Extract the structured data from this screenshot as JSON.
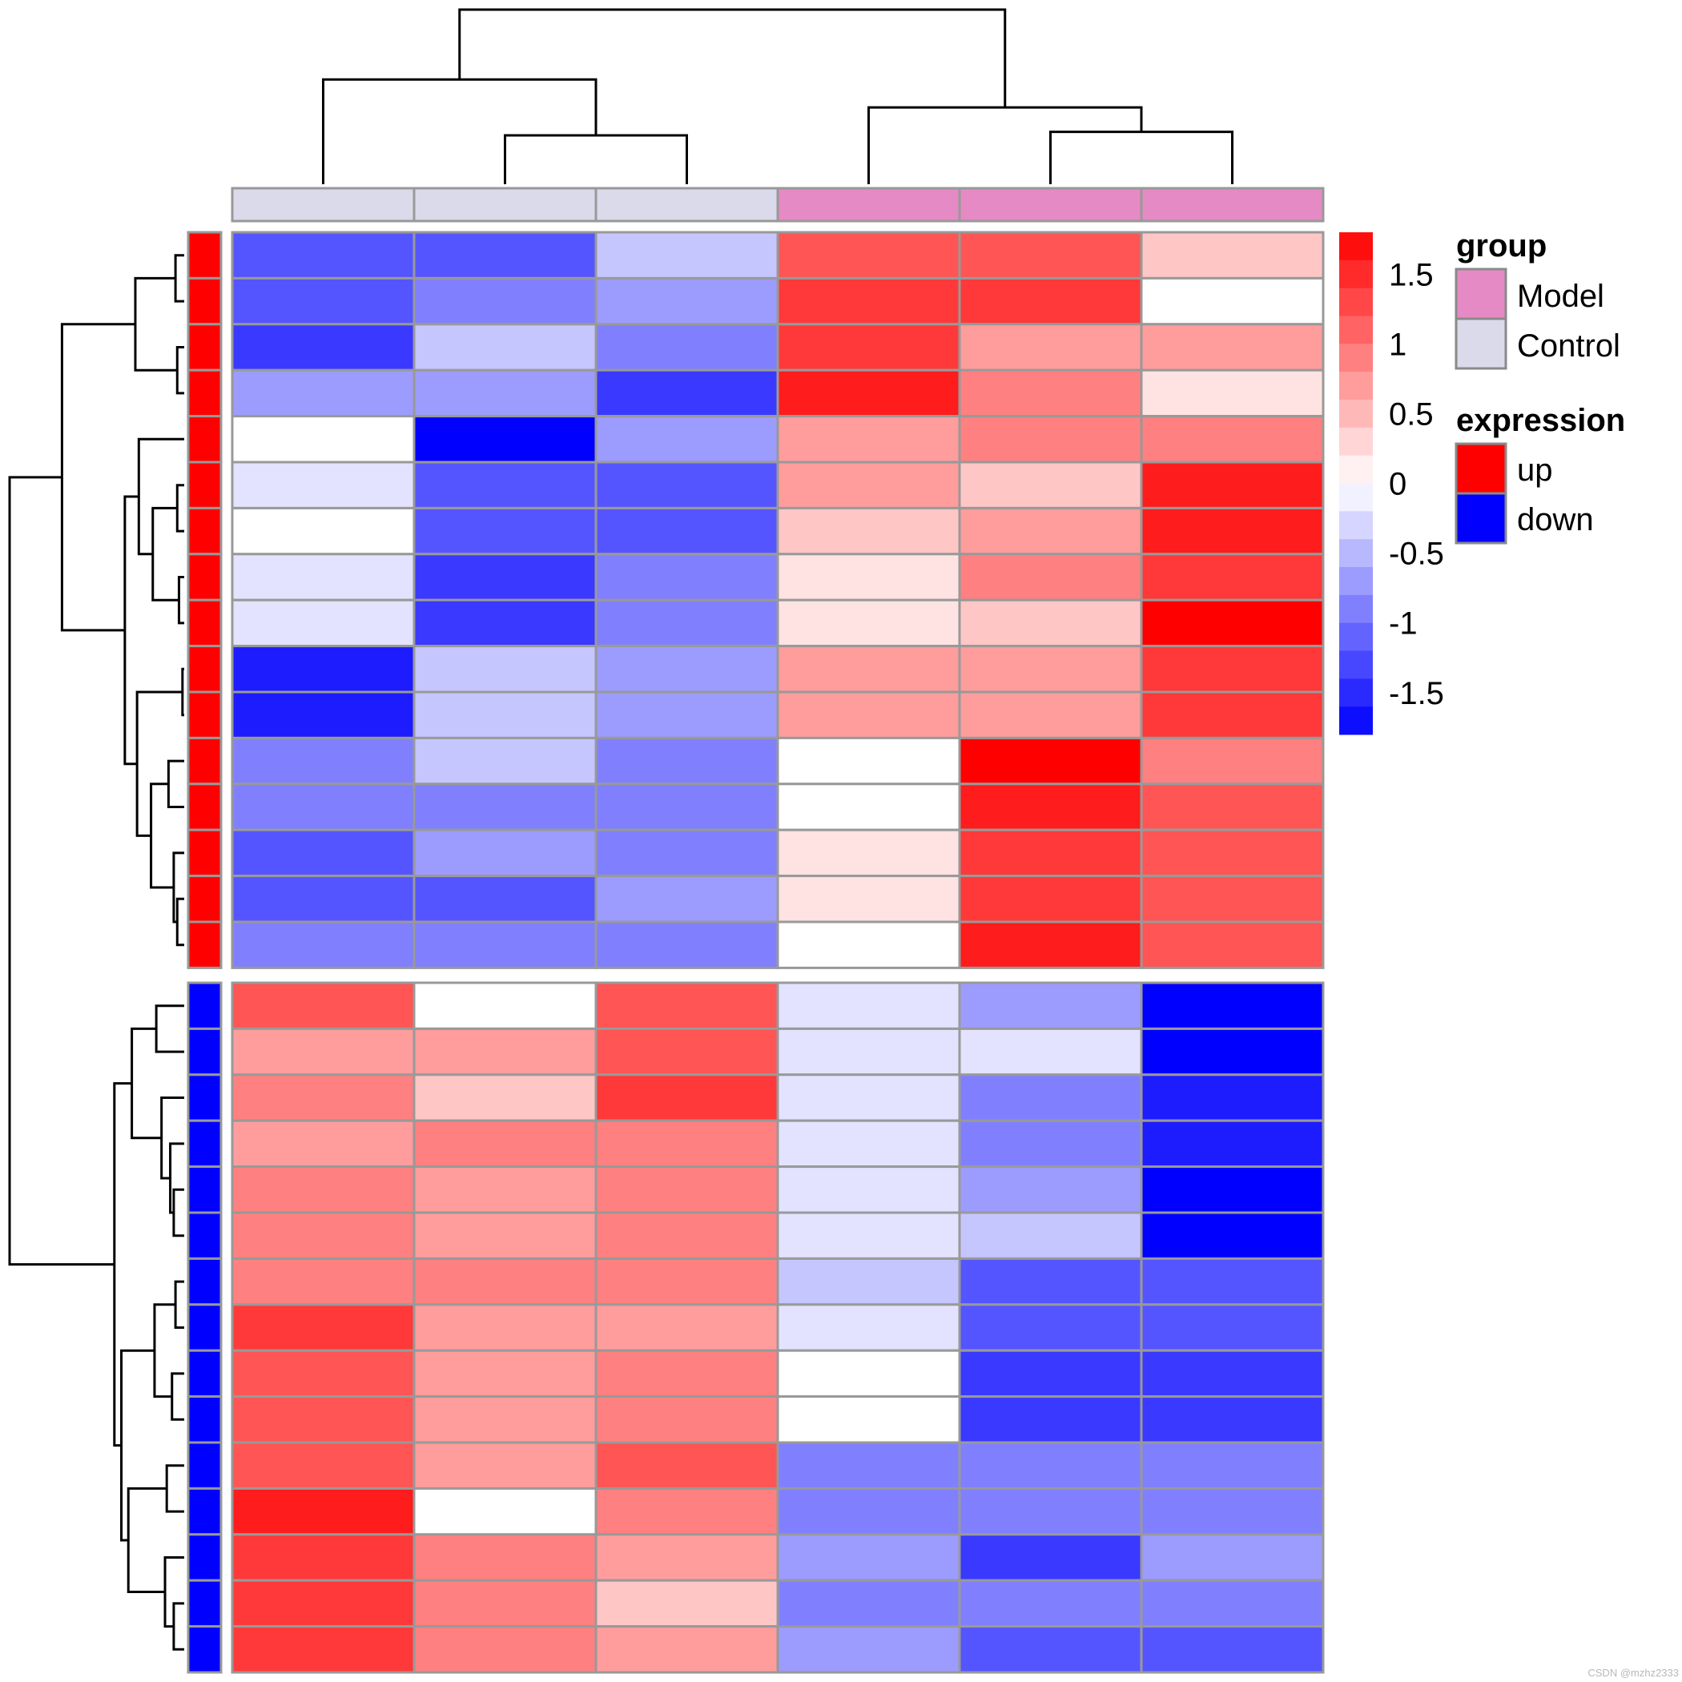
{
  "chart_data": {
    "type": "heatmap",
    "samples": 6,
    "column_groups": [
      "Control",
      "Control",
      "Control",
      "Model",
      "Model",
      "Model"
    ],
    "row_expression": [
      "up",
      "up",
      "up",
      "up",
      "up",
      "up",
      "up",
      "up",
      "up",
      "up",
      "up",
      "up",
      "up",
      "up",
      "up",
      "up",
      "down",
      "down",
      "down",
      "down",
      "down",
      "down",
      "down",
      "down",
      "down",
      "down",
      "down",
      "down",
      "down",
      "down",
      "down"
    ],
    "row_split_after": 16,
    "values": [
      [
        -1.2,
        -1.2,
        -0.4,
        1.2,
        1.2,
        0.4
      ],
      [
        -1.2,
        -0.9,
        -0.7,
        1.4,
        1.4,
        0.0
      ],
      [
        -1.4,
        -0.4,
        -0.9,
        1.4,
        0.7,
        0.7
      ],
      [
        -0.7,
        -0.7,
        -1.4,
        1.6,
        0.9,
        0.2
      ],
      [
        0.0,
        -1.8,
        -0.7,
        0.7,
        0.9,
        0.9
      ],
      [
        -0.2,
        -1.2,
        -1.2,
        0.7,
        0.4,
        1.6
      ],
      [
        0.0,
        -1.2,
        -1.2,
        0.4,
        0.7,
        1.6
      ],
      [
        -0.2,
        -1.4,
        -0.9,
        0.2,
        0.9,
        1.4
      ],
      [
        -0.2,
        -1.4,
        -0.9,
        0.2,
        0.4,
        1.8
      ],
      [
        -1.6,
        -0.4,
        -0.7,
        0.7,
        0.7,
        1.4
      ],
      [
        -1.6,
        -0.4,
        -0.7,
        0.7,
        0.7,
        1.4
      ],
      [
        -0.9,
        -0.4,
        -0.9,
        0.0,
        1.8,
        0.9
      ],
      [
        -0.9,
        -0.9,
        -0.9,
        0.0,
        1.6,
        1.2
      ],
      [
        -1.2,
        -0.7,
        -0.9,
        0.2,
        1.4,
        1.2
      ],
      [
        -1.2,
        -1.2,
        -0.7,
        0.2,
        1.4,
        1.2
      ],
      [
        -0.9,
        -0.9,
        -0.9,
        0.0,
        1.6,
        1.2
      ],
      [
        1.2,
        0.0,
        1.2,
        -0.2,
        -0.7,
        -1.8
      ],
      [
        0.7,
        0.7,
        1.2,
        -0.2,
        -0.2,
        -1.8
      ],
      [
        0.9,
        0.4,
        1.4,
        -0.2,
        -0.9,
        -1.6
      ],
      [
        0.7,
        0.9,
        0.9,
        -0.2,
        -0.9,
        -1.6
      ],
      [
        0.9,
        0.7,
        0.9,
        -0.2,
        -0.7,
        -1.8
      ],
      [
        0.9,
        0.7,
        0.9,
        -0.2,
        -0.4,
        -1.8
      ],
      [
        0.9,
        0.9,
        0.9,
        -0.4,
        -1.2,
        -1.2
      ],
      [
        1.4,
        0.7,
        0.7,
        -0.2,
        -1.2,
        -1.2
      ],
      [
        1.2,
        0.7,
        0.9,
        0.0,
        -1.4,
        -1.4
      ],
      [
        1.2,
        0.7,
        0.9,
        0.0,
        -1.4,
        -1.4
      ],
      [
        1.2,
        0.7,
        1.2,
        -0.9,
        -0.9,
        -0.9
      ],
      [
        1.6,
        0.0,
        0.9,
        -0.9,
        -0.9,
        -0.9
      ],
      [
        1.4,
        0.9,
        0.7,
        -0.7,
        -1.4,
        -0.7
      ],
      [
        1.4,
        0.9,
        0.4,
        -0.9,
        -0.9,
        -0.9
      ],
      [
        1.4,
        0.9,
        0.7,
        -0.7,
        -1.2,
        -1.2
      ]
    ],
    "color_scale": {
      "range": [
        -1.8,
        1.8
      ],
      "low": "#0000FF",
      "mid": "#FFFFFF",
      "high": "#FF0000",
      "ticks": [
        1.5,
        1,
        0.5,
        0,
        -0.5,
        -1,
        -1.5
      ],
      "tick_labels": [
        "1.5",
        "1",
        "0.5",
        "0",
        "-0.5",
        "-1",
        "-1.5"
      ]
    },
    "legends": {
      "group": {
        "title": "group",
        "items": [
          {
            "label": "Model",
            "color": "#E58AC4"
          },
          {
            "label": "Control",
            "color": "#DADAEB"
          }
        ]
      },
      "expression": {
        "title": "expression",
        "items": [
          {
            "label": "up",
            "color": "#FF0000"
          },
          {
            "label": "down",
            "color": "#0000FF"
          }
        ]
      }
    },
    "grid_color": "#999999",
    "dendrogram_color": "#000000"
  },
  "watermark": "CSDN @mzhz2333"
}
